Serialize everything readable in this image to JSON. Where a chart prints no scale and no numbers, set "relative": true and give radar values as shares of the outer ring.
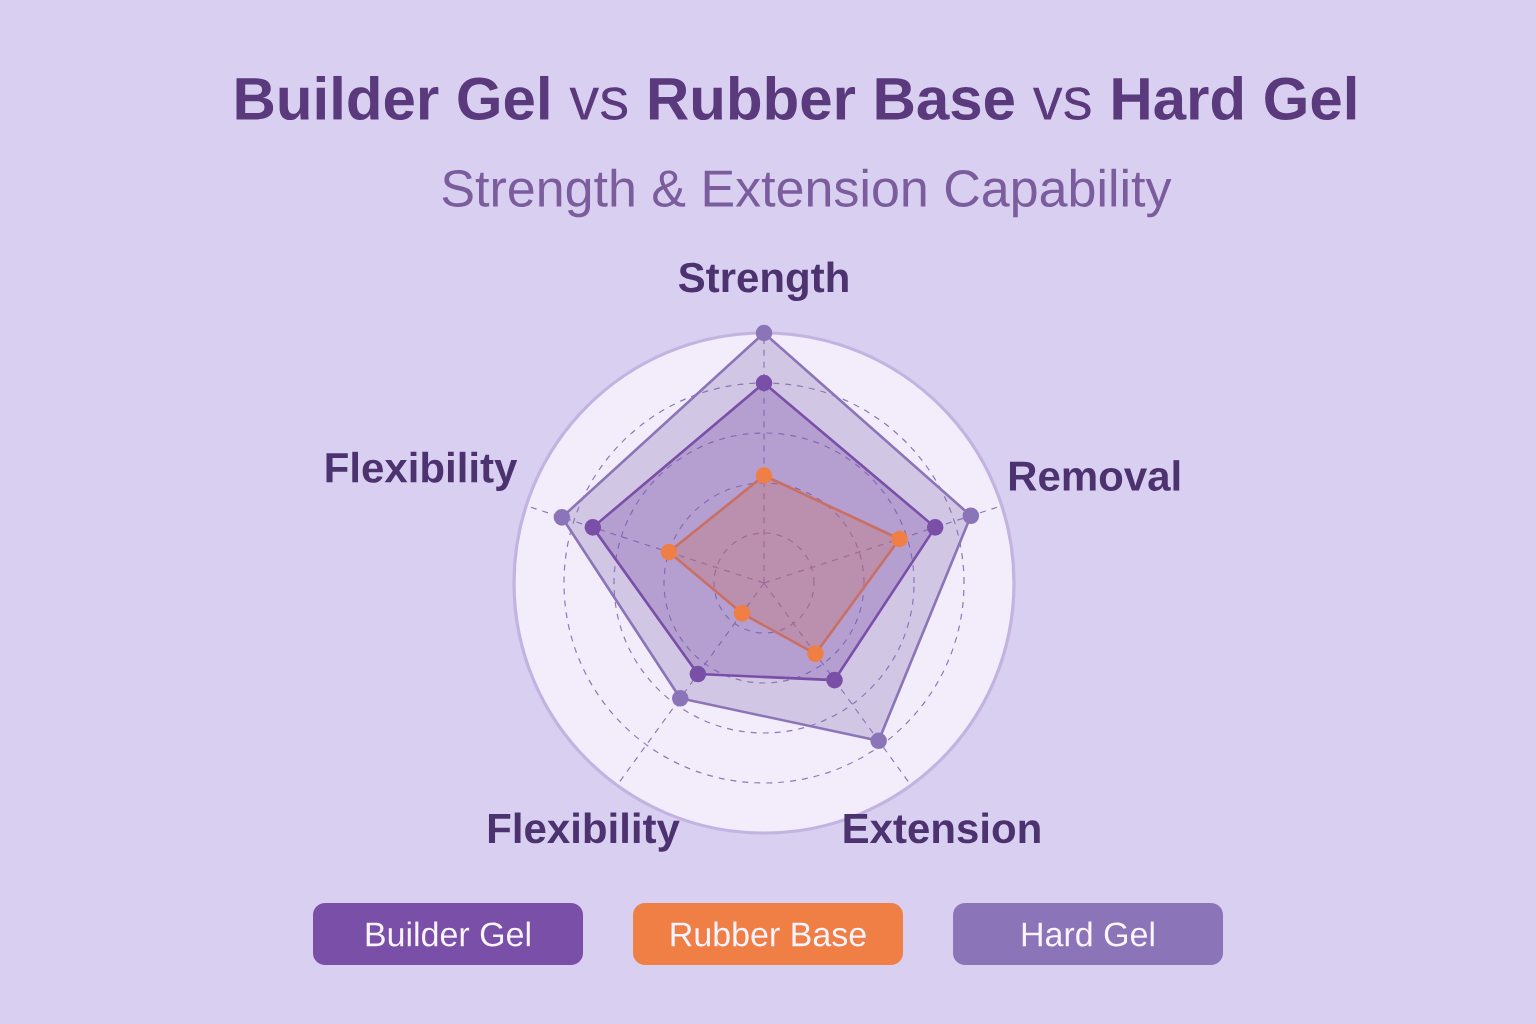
{
  "chart_data": {
    "type": "radar",
    "title": "**Builder Gel** vs **Rubber Base** vs **Hard Gel**",
    "subtitle": "Strength & Extension Capability",
    "categories": [
      "Strength",
      "Removal",
      "Extension",
      "Flexibility",
      "Flexibility"
    ],
    "relative": true,
    "series": [
      {
        "name": "Builder Gel",
        "color": "#7a4fa8",
        "values": [
          0.8,
          0.72,
          0.48,
          0.45,
          0.72
        ]
      },
      {
        "name": "Rubber Base",
        "color": "#ef7f45",
        "values": [
          0.43,
          0.57,
          0.35,
          0.15,
          0.4
        ]
      },
      {
        "name": "Hard Gel",
        "color": "#8c74b8",
        "values": [
          1.0,
          0.87,
          0.78,
          0.57,
          0.85
        ]
      }
    ],
    "grid": true,
    "legend": "bottom",
    "marker": "circle"
  }
}
